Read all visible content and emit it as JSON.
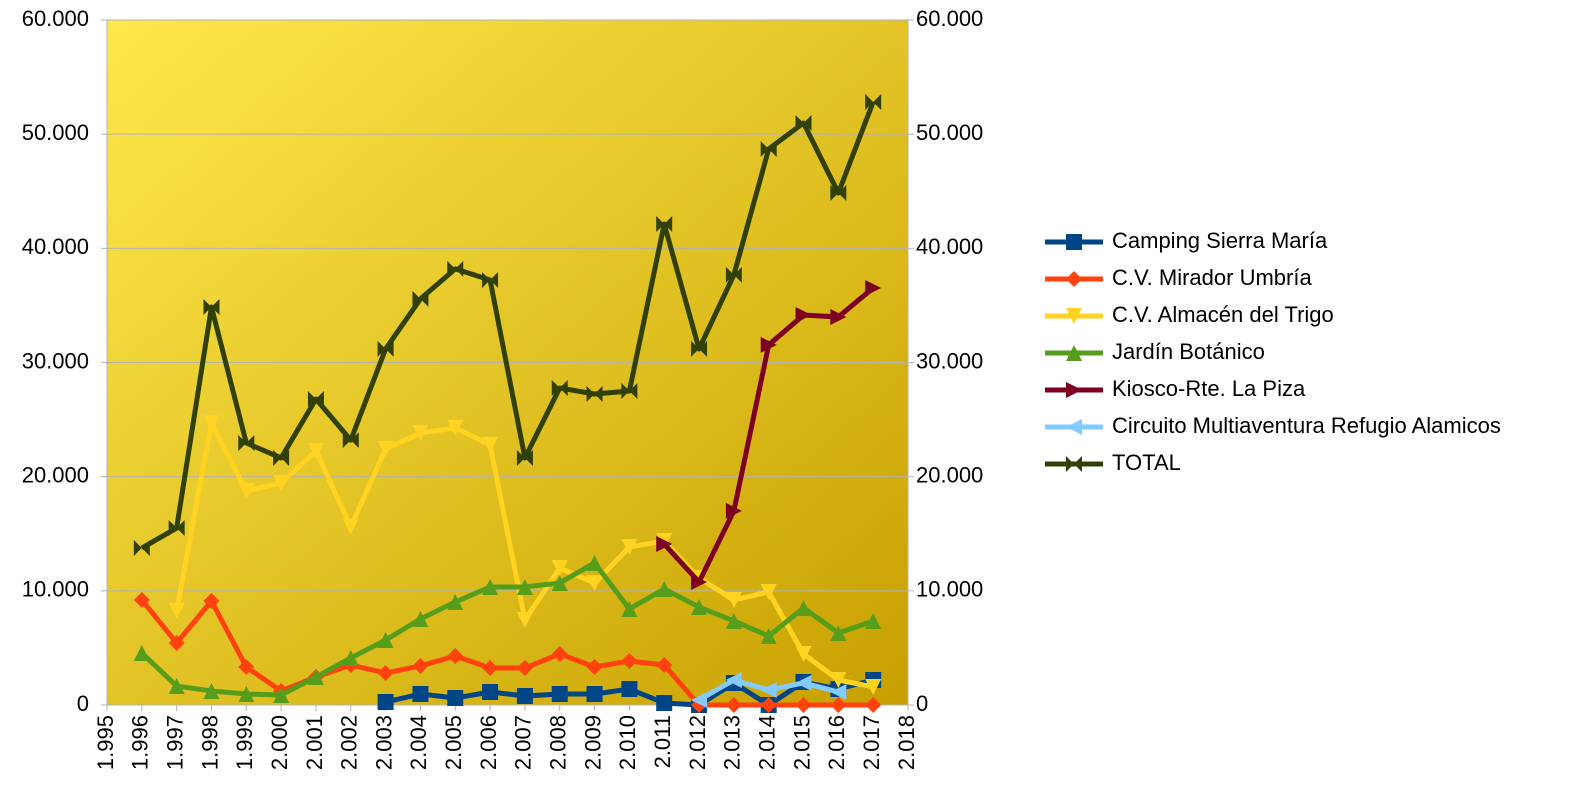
{
  "chart_data": {
    "type": "line",
    "x": [
      1996,
      1997,
      1998,
      1999,
      2000,
      2001,
      2002,
      2003,
      2004,
      2005,
      2006,
      2007,
      2008,
      2009,
      2010,
      2011,
      2012,
      2013,
      2014,
      2015,
      2016,
      2017
    ],
    "xlim": [
      1995,
      2018
    ],
    "xticks": [
      {
        "value": 1995,
        "label": "1.995"
      },
      {
        "value": 1996,
        "label": "1.996"
      },
      {
        "value": 1997,
        "label": "1.997"
      },
      {
        "value": 1998,
        "label": "1.998"
      },
      {
        "value": 1999,
        "label": "1.999"
      },
      {
        "value": 2000,
        "label": "2.000"
      },
      {
        "value": 2001,
        "label": "2.001"
      },
      {
        "value": 2002,
        "label": "2.002"
      },
      {
        "value": 2003,
        "label": "2.003"
      },
      {
        "value": 2004,
        "label": "2.004"
      },
      {
        "value": 2005,
        "label": "2.005"
      },
      {
        "value": 2006,
        "label": "2.006"
      },
      {
        "value": 2007,
        "label": "2.007"
      },
      {
        "value": 2008,
        "label": "2.008"
      },
      {
        "value": 2009,
        "label": "2.009"
      },
      {
        "value": 2010,
        "label": "2.010"
      },
      {
        "value": 2011,
        "label": "2.011"
      },
      {
        "value": 2012,
        "label": "2.012"
      },
      {
        "value": 2013,
        "label": "2.013"
      },
      {
        "value": 2014,
        "label": "2.014"
      },
      {
        "value": 2015,
        "label": "2.015"
      },
      {
        "value": 2016,
        "label": "2.016"
      },
      {
        "value": 2017,
        "label": "2.017"
      },
      {
        "value": 2018,
        "label": "2.018"
      }
    ],
    "ylim": [
      0,
      60000
    ],
    "yticks": [
      0,
      {
        "value": 10000,
        "label": "10.000"
      },
      {
        "value": 20000,
        "label": "20.000"
      },
      {
        "value": 30000,
        "label": "30.000"
      },
      {
        "value": 40000,
        "label": "40.000"
      },
      {
        "value": 50000,
        "label": "50.000"
      },
      {
        "value": 60000,
        "label": "60.000"
      }
    ],
    "y2lim": [
      0,
      60000
    ],
    "y2ticks": [
      0,
      {
        "value": 10000,
        "label": "10.000"
      },
      {
        "value": 20000,
        "label": "20.000"
      },
      {
        "value": 30000,
        "label": "30.000"
      },
      {
        "value": 40000,
        "label": "40.000"
      },
      {
        "value": 50000,
        "label": "50.000"
      },
      {
        "value": 60000,
        "label": "60.000"
      }
    ],
    "grid": true,
    "legend": "right",
    "series": [
      {
        "name": "Camping Sierra María",
        "color": "#004586",
        "marker": "square",
        "values": [
          null,
          null,
          null,
          null,
          null,
          null,
          null,
          260,
          960,
          610,
          1140,
          790,
          960,
          960,
          1400,
          180,
          0,
          1930,
          0,
          2010,
          1400,
          2190
        ]
      },
      {
        "name": "C.V. Mirador Umbría",
        "color": "#ff420e",
        "marker": "diamond",
        "values": [
          9200,
          5430,
          9110,
          3330,
          1230,
          2450,
          3500,
          2800,
          3420,
          4290,
          3240,
          3240,
          4470,
          3330,
          3850,
          3500,
          0,
          0,
          0,
          0,
          0,
          0
        ]
      },
      {
        "name": "C.V. Almacén del Trigo",
        "color": "#ffd320",
        "marker": "triangle-down",
        "values": [
          null,
          8240,
          24700,
          18750,
          19450,
          22250,
          15600,
          22430,
          23830,
          24270,
          22780,
          7450,
          12000,
          10690,
          13840,
          14370,
          11130,
          9200,
          9900,
          4470,
          2190,
          1580
        ]
      },
      {
        "name": "Jardín Botánico",
        "color": "#579d1c",
        "marker": "triangle-up",
        "values": [
          4560,
          1660,
          1230,
          960,
          880,
          2450,
          4120,
          5690,
          7530,
          9020,
          10340,
          10340,
          10690,
          12440,
          8410,
          10160,
          8580,
          7360,
          6040,
          8500,
          6310,
          7360
        ]
      },
      {
        "name": "Kiosco-Rte. La Piza",
        "color": "#7e0021",
        "marker": "triangle-right",
        "values": [
          null,
          null,
          null,
          null,
          null,
          null,
          null,
          null,
          null,
          null,
          null,
          null,
          null,
          null,
          null,
          14100,
          10770,
          17000,
          31540,
          34160,
          33990,
          36530
        ]
      },
      {
        "name": "Circuito Multiaventura Refugio Alamicos",
        "color": "#83caff",
        "marker": "triangle-left",
        "values": [
          null,
          null,
          null,
          null,
          null,
          null,
          null,
          null,
          null,
          null,
          null,
          null,
          null,
          null,
          null,
          null,
          440,
          2190,
          1310,
          1930,
          1140,
          null
        ]
      },
      {
        "name": "TOTAL",
        "color": "#314004",
        "marker": "bowtie",
        "values": [
          13750,
          15500,
          34860,
          22950,
          21640,
          26800,
          23200,
          31190,
          35570,
          38200,
          37230,
          21640,
          27770,
          27240,
          27500,
          42130,
          31190,
          37670,
          48700,
          50980,
          44850,
          52820
        ]
      }
    ]
  }
}
